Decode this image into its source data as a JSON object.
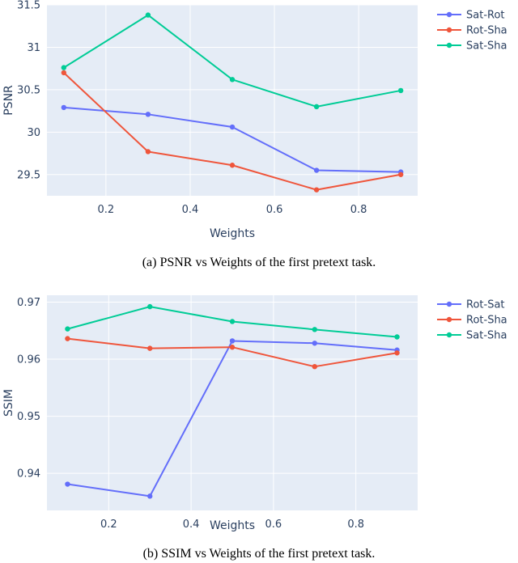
{
  "chart_data": [
    {
      "type": "line",
      "caption": "(a) PSNR vs Weights of the first pretext task.",
      "xlabel": "Weights",
      "ylabel": "PSNR",
      "x": [
        0.1,
        0.3,
        0.5,
        0.7,
        0.9
      ],
      "xlim": [
        0.06,
        0.94
      ],
      "ylim": [
        29.25,
        31.5
      ],
      "xticks": [
        0.2,
        0.4,
        0.6,
        0.8
      ],
      "xtick_labels": [
        "0.2",
        "0.4",
        "0.6",
        "0.8"
      ],
      "yticks": [
        29.5,
        30,
        30.5,
        31,
        31.5
      ],
      "ytick_labels": [
        "29.5",
        "30",
        "30.5",
        "31",
        "31.5"
      ],
      "grid": true,
      "legend": "top-right",
      "series": [
        {
          "name": "Sat-Rot",
          "color": "#636efa",
          "values": [
            30.29,
            30.21,
            30.06,
            29.55,
            29.53
          ]
        },
        {
          "name": "Rot-Sha",
          "color": "#ef553b",
          "values": [
            30.7,
            29.77,
            29.61,
            29.32,
            29.5
          ]
        },
        {
          "name": "Sat-Sha",
          "color": "#00cc96",
          "values": [
            30.76,
            31.38,
            30.62,
            30.3,
            30.49
          ]
        }
      ]
    },
    {
      "type": "line",
      "caption": "(b) SSIM vs Weights of the first pretext task.",
      "xlabel": "Weights",
      "ylabel": "SSIM",
      "x": [
        0.1,
        0.3,
        0.5,
        0.7,
        0.9
      ],
      "xlim": [
        0.05,
        0.95
      ],
      "ylim": [
        0.9335,
        0.9712
      ],
      "xticks": [
        0.2,
        0.4,
        0.6,
        0.8
      ],
      "xtick_labels": [
        "0.2",
        "0.4",
        "0.6",
        "0.8"
      ],
      "yticks": [
        0.94,
        0.95,
        0.96,
        0.97
      ],
      "ytick_labels": [
        "0.94",
        "0.95",
        "0.96",
        "0.97"
      ],
      "grid": true,
      "legend": "top-right",
      "series": [
        {
          "name": "Rot-Sat",
          "color": "#636efa",
          "values": [
            0.9381,
            0.936,
            0.9632,
            0.9628,
            0.9616
          ]
        },
        {
          "name": "Rot-Sha",
          "color": "#ef553b",
          "values": [
            0.9636,
            0.9619,
            0.9621,
            0.9587,
            0.9611
          ]
        },
        {
          "name": "Sat-Sha",
          "color": "#00cc96",
          "values": [
            0.9653,
            0.9692,
            0.9666,
            0.9652,
            0.9639
          ]
        }
      ]
    }
  ]
}
